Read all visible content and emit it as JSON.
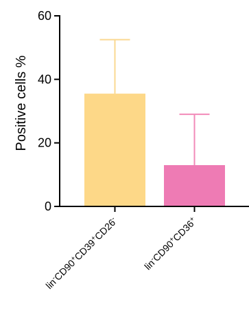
{
  "chart_data": {
    "type": "bar",
    "title": "",
    "xlabel": "",
    "ylabel": "Positive cells %",
    "ylim": [
      0,
      60
    ],
    "yticks": [
      0,
      20,
      40,
      60
    ],
    "grid": false,
    "legend": "none",
    "error_bars": "upper only",
    "categories": [
      {
        "base1": "lin",
        "sup1": "-",
        "base2": "CD90",
        "sup2": "+",
        "base3": "CD39",
        "sup3": "+",
        "base4": "CD26",
        "sup4": "-"
      },
      {
        "base1": "lin",
        "sup1": "-",
        "base2": "CD90",
        "sup2": "+",
        "base3": "CD36",
        "sup3": "+"
      }
    ],
    "values": [
      35.5,
      13
    ],
    "errors": [
      17,
      16
    ],
    "colors": [
      "#FDD888",
      "#EE7BB4"
    ],
    "error_colors": [
      "#FAD891",
      "#F28AB8"
    ]
  }
}
